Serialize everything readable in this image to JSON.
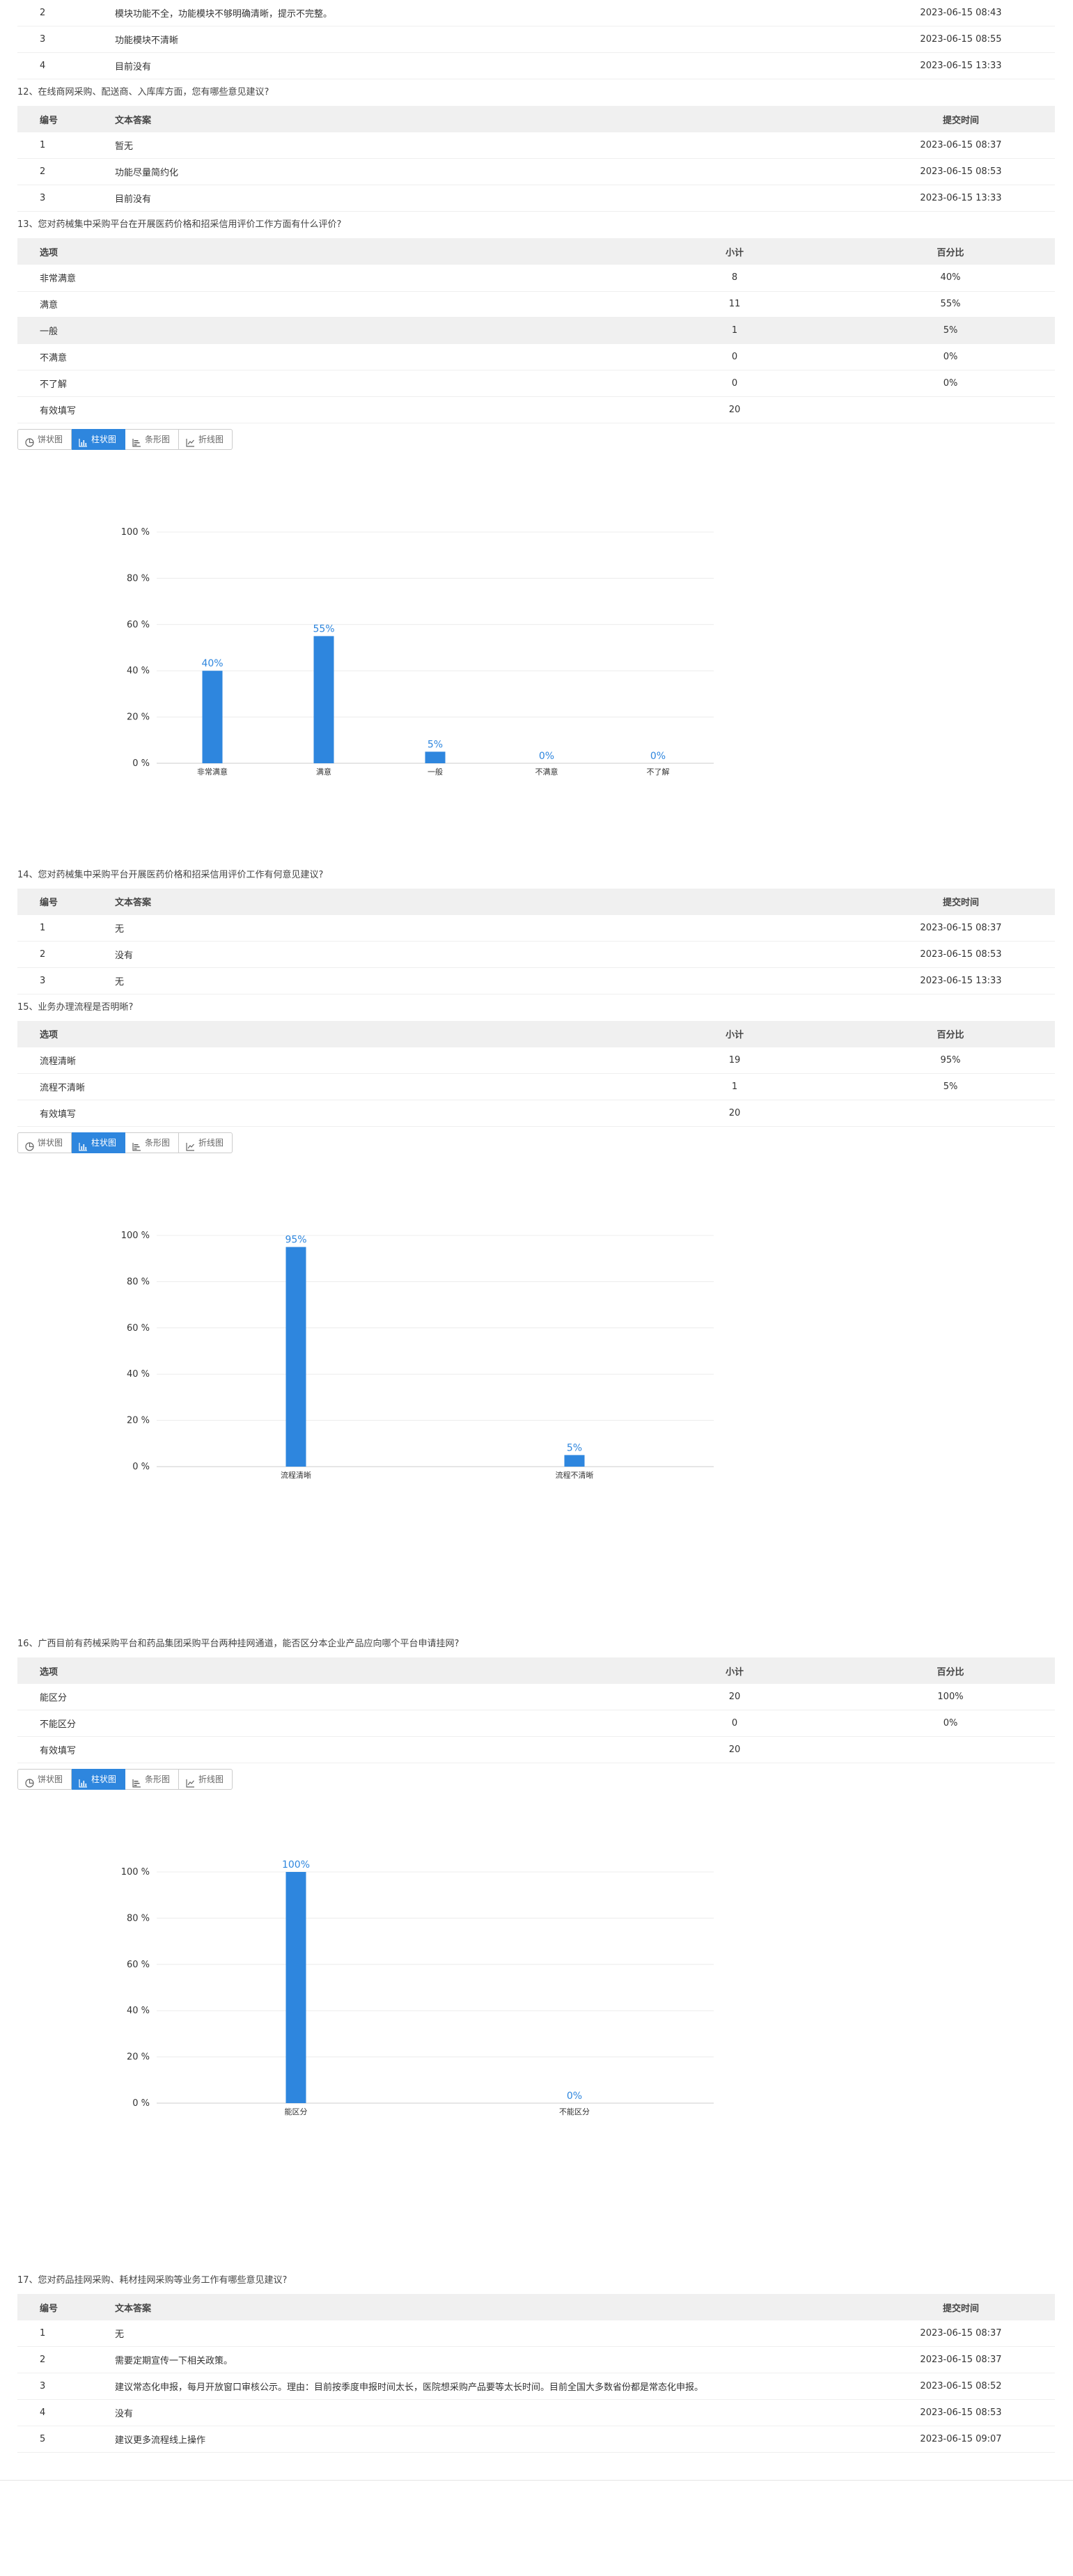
{
  "q11_rows": [
    {
      "idx": "2",
      "text": "模块功能不全，功能模块不够明确清晰，提示不完整。",
      "time": "2023-06-15 08:43"
    },
    {
      "idx": "3",
      "text": "功能模块不清晰",
      "time": "2023-06-15 08:55"
    },
    {
      "idx": "4",
      "text": "目前没有",
      "time": "2023-06-15 13:33"
    }
  ],
  "q12": {
    "title": "12、在线商网采购、配送商、入库库方面，您有哪些意见建议?",
    "headers": {
      "idx": "编号",
      "text": "文本答案",
      "time": "提交时间"
    },
    "rows": [
      {
        "idx": "1",
        "text": "暂无",
        "time": "2023-06-15 08:37"
      },
      {
        "idx": "2",
        "text": "功能尽量简约化",
        "time": "2023-06-15 08:53"
      },
      {
        "idx": "3",
        "text": "目前没有",
        "time": "2023-06-15 13:33"
      }
    ]
  },
  "q13": {
    "title": "13、您对药械集中采购平台在开展医药价格和招采信用评价工作方面有什么评价?",
    "headers": {
      "opt": "选项",
      "cnt": "小计",
      "pct": "百分比"
    },
    "rows": [
      {
        "opt": "非常满意",
        "cnt": "8",
        "pct": "40%"
      },
      {
        "opt": "满意",
        "cnt": "11",
        "pct": "55%"
      },
      {
        "opt": "一般",
        "cnt": "1",
        "pct": "5%"
      },
      {
        "opt": "不满意",
        "cnt": "0",
        "pct": "0%"
      },
      {
        "opt": "不了解",
        "cnt": "0",
        "pct": "0%"
      }
    ],
    "valid": {
      "opt": "有效填写",
      "cnt": "20"
    }
  },
  "q14": {
    "title": "14、您对药械集中采购平台开展医药价格和招采信用评价工作有何意见建议?",
    "headers": {
      "idx": "编号",
      "text": "文本答案",
      "time": "提交时间"
    },
    "rows": [
      {
        "idx": "1",
        "text": "无",
        "time": "2023-06-15 08:37"
      },
      {
        "idx": "2",
        "text": "没有",
        "time": "2023-06-15 08:53"
      },
      {
        "idx": "3",
        "text": "无",
        "time": "2023-06-15 13:33"
      }
    ]
  },
  "q15": {
    "title": "15、业务办理流程是否明晰?",
    "headers": {
      "opt": "选项",
      "cnt": "小计",
      "pct": "百分比"
    },
    "rows": [
      {
        "opt": "流程清晰",
        "cnt": "19",
        "pct": "95%"
      },
      {
        "opt": "流程不清晰",
        "cnt": "1",
        "pct": "5%"
      }
    ],
    "valid": {
      "opt": "有效填写",
      "cnt": "20"
    }
  },
  "q16": {
    "title": "16、广西目前有药械采购平台和药品集团采购平台两种挂网通道，能否区分本企业产品应向哪个平台申请挂网?",
    "headers": {
      "opt": "选项",
      "cnt": "小计",
      "pct": "百分比"
    },
    "rows": [
      {
        "opt": "能区分",
        "cnt": "20",
        "pct": "100%"
      },
      {
        "opt": "不能区分",
        "cnt": "0",
        "pct": "0%"
      }
    ],
    "valid": {
      "opt": "有效填写",
      "cnt": "20"
    }
  },
  "q17": {
    "title": "17、您对药品挂网采购、耗材挂网采购等业务工作有哪些意见建议?",
    "headers": {
      "idx": "编号",
      "text": "文本答案",
      "time": "提交时间"
    },
    "rows": [
      {
        "idx": "1",
        "text": "无",
        "time": "2023-06-15 08:37"
      },
      {
        "idx": "2",
        "text": "需要定期宣传一下相关政策。",
        "time": "2023-06-15 08:37"
      },
      {
        "idx": "3",
        "text": "建议常态化申报，每月开放窗口审核公示。理由：目前按季度申报时间太长，医院想采购产品要等太长时间。目前全国大多数省份都是常态化申报。",
        "time": "2023-06-15 08:52"
      },
      {
        "idx": "4",
        "text": "没有",
        "time": "2023-06-15 08:53"
      },
      {
        "idx": "5",
        "text": "建议更多流程线上操作",
        "time": "2023-06-15 09:07"
      }
    ]
  },
  "tabs": {
    "pie": "饼状图",
    "bar": "柱状图",
    "hbar": "条形图",
    "line": "折线图"
  },
  "accent_color": "#2e86de",
  "chart_data": [
    {
      "type": "bar",
      "categories": [
        "非常满意",
        "满意",
        "一般",
        "不满意",
        "不了解"
      ],
      "values": [
        40,
        55,
        5,
        0,
        0
      ],
      "value_labels": [
        "40%",
        "55%",
        "5%",
        "0%",
        "0%"
      ],
      "yticks": [
        "0 %",
        "20 %",
        "40 %",
        "60 %",
        "80 %",
        "100 %"
      ],
      "ylim": [
        0,
        100
      ],
      "grid": true
    },
    {
      "type": "bar",
      "categories": [
        "流程清晰",
        "流程不清晰"
      ],
      "values": [
        95,
        5
      ],
      "value_labels": [
        "95%",
        "5%"
      ],
      "yticks": [
        "0 %",
        "20 %",
        "40 %",
        "60 %",
        "80 %",
        "100 %"
      ],
      "ylim": [
        0,
        100
      ],
      "grid": true
    },
    {
      "type": "bar",
      "categories": [
        "能区分",
        "不能区分"
      ],
      "values": [
        100,
        0
      ],
      "value_labels": [
        "100%",
        "0%"
      ],
      "yticks": [
        "0 %",
        "20 %",
        "40 %",
        "60 %",
        "80 %",
        "100 %"
      ],
      "ylim": [
        0,
        100
      ],
      "grid": true
    }
  ]
}
